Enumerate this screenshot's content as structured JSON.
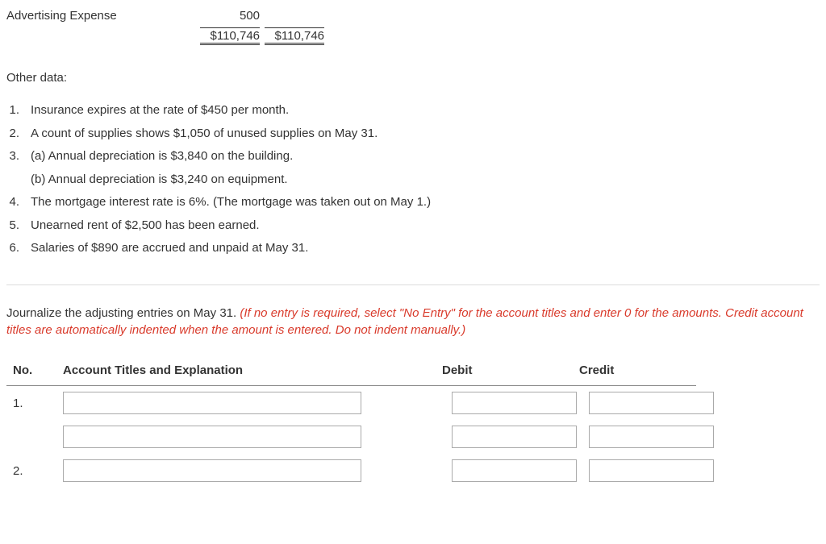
{
  "top_table": {
    "account_label": "Advertising Expense",
    "amount_col1": "500",
    "total_col1": "$110,746",
    "total_col2": "$110,746"
  },
  "other_data_heading": "Other data:",
  "other_data_items": [
    {
      "num": "1.",
      "text": "Insurance expires at the rate of $450 per month."
    },
    {
      "num": "2.",
      "text": "A count of supplies shows $1,050 of unused supplies on May 31."
    },
    {
      "num": "3.",
      "text": "(a) Annual depreciation is $3,840 on the building."
    },
    {
      "num": "",
      "text": "(b) Annual depreciation is $3,240 on equipment."
    },
    {
      "num": "4.",
      "text": "The mortgage interest rate is 6%. (The mortgage was taken out on May 1.)"
    },
    {
      "num": "5.",
      "text": "Unearned rent of $2,500 has been earned."
    },
    {
      "num": "6.",
      "text": "Salaries of $890 are accrued and unpaid at May 31."
    }
  ],
  "instructions": {
    "lead": "Journalize the adjusting entries on May 31. ",
    "italic": "(If no entry is required, select \"No Entry\" for the account titles and enter 0 for the amounts. Credit account titles are automatically indented when the amount is entered. Do not indent manually.)"
  },
  "entry_headers": {
    "no": "No.",
    "acct": "Account Titles and Explanation",
    "debit": "Debit",
    "credit": "Credit"
  },
  "entry_rows": [
    {
      "no": "1."
    },
    {
      "no": ""
    },
    {
      "no": "2."
    }
  ],
  "colors": {
    "instruction_italic": "#d93a2b",
    "text": "#333333",
    "border": "#aaaaaa",
    "divider": "#dddddd"
  }
}
